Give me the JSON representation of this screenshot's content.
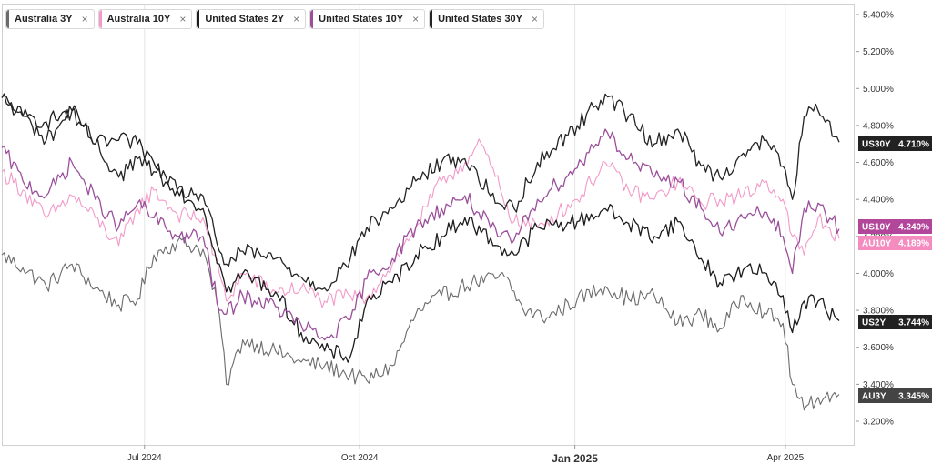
{
  "colors": {
    "au3y": "#6b6b6b",
    "au10y": "#f29ac8",
    "us2y": "#1c1c1c",
    "us10y": "#9b4f9b",
    "us30y": "#242424",
    "tag_dark": "#222222",
    "tag_au3y": "#444444",
    "tag_us10y": "#b2469a",
    "tag_au10y": "#f48cc0"
  },
  "legend": [
    {
      "label": "Australia 3Y",
      "color": "#6b6b6b",
      "close": "×"
    },
    {
      "label": "Australia 10Y",
      "color": "#f29ac8",
      "close": "×"
    },
    {
      "label": "United States 2Y",
      "color": "#1c1c1c",
      "close": "×"
    },
    {
      "label": "United States 10Y",
      "color": "#9b4f9b",
      "close": "×"
    },
    {
      "label": "United States 30Y",
      "color": "#242424",
      "close": "×"
    }
  ],
  "chart_data": {
    "type": "line",
    "title": "",
    "xlabel": "",
    "ylabel": "",
    "x_range": [
      "2024-05-01",
      "2025-04-24"
    ],
    "ylim": [
      3.1,
      5.45
    ],
    "y_ticks": [
      "5.400%",
      "5.200%",
      "5.000%",
      "4.800%",
      "4.600%",
      "4.400%",
      "4.200%",
      "4.000%",
      "3.800%",
      "3.600%",
      "3.400%",
      "3.200%"
    ],
    "y_tick_values": [
      5.4,
      5.2,
      5.0,
      4.8,
      4.6,
      4.4,
      4.2,
      4.0,
      3.8,
      3.6,
      3.4,
      3.2
    ],
    "x_ticks": [
      {
        "date": "2024-07-01",
        "label": "Jul 2024",
        "strong": false
      },
      {
        "date": "2024-10-01",
        "label": "Oct 2024",
        "strong": false
      },
      {
        "date": "2025-01-01",
        "label": "Jan 2025",
        "strong": true
      },
      {
        "date": "2025-04-01",
        "label": "Apr 2025",
        "strong": false
      }
    ],
    "grid": {
      "vertical": true,
      "horizontal": false
    },
    "series": [
      {
        "name": "Australia 3Y",
        "key": "au3y",
        "tag": "AU3Y",
        "last_label": "3.345%",
        "last_value": 3.345,
        "points": [
          [
            "2024-05-01",
            4.1
          ],
          [
            "2024-05-10",
            4.03
          ],
          [
            "2024-05-20",
            3.93
          ],
          [
            "2024-05-31",
            4.05
          ],
          [
            "2024-06-10",
            3.92
          ],
          [
            "2024-06-20",
            3.83
          ],
          [
            "2024-06-28",
            3.86
          ],
          [
            "2024-07-05",
            4.1
          ],
          [
            "2024-07-15",
            4.17
          ],
          [
            "2024-07-26",
            4.13
          ],
          [
            "2024-08-02",
            3.78
          ],
          [
            "2024-08-05",
            3.4
          ],
          [
            "2024-08-12",
            3.64
          ],
          [
            "2024-08-26",
            3.58
          ],
          [
            "2024-09-06",
            3.52
          ],
          [
            "2024-09-16",
            3.5
          ],
          [
            "2024-09-27",
            3.45
          ],
          [
            "2024-10-04",
            3.42
          ],
          [
            "2024-10-15",
            3.5
          ],
          [
            "2024-10-25",
            3.78
          ],
          [
            "2024-11-05",
            3.88
          ],
          [
            "2024-11-18",
            3.95
          ],
          [
            "2024-12-02",
            3.98
          ],
          [
            "2024-12-10",
            3.8
          ],
          [
            "2024-12-20",
            3.76
          ],
          [
            "2025-01-02",
            3.86
          ],
          [
            "2025-01-14",
            3.93
          ],
          [
            "2025-01-24",
            3.86
          ],
          [
            "2025-02-04",
            3.88
          ],
          [
            "2025-02-14",
            3.73
          ],
          [
            "2025-02-24",
            3.78
          ],
          [
            "2025-03-04",
            3.7
          ],
          [
            "2025-03-14",
            3.88
          ],
          [
            "2025-03-24",
            3.78
          ],
          [
            "2025-03-31",
            3.73
          ],
          [
            "2025-04-04",
            3.4
          ],
          [
            "2025-04-09",
            3.26
          ],
          [
            "2025-04-15",
            3.33
          ],
          [
            "2025-04-24",
            3.345
          ]
        ]
      },
      {
        "name": "Australia 10Y",
        "key": "au10y",
        "tag": "AU10Y",
        "last_label": "4.189%",
        "last_value": 4.189,
        "points": [
          [
            "2024-05-01",
            4.55
          ],
          [
            "2024-05-10",
            4.45
          ],
          [
            "2024-05-20",
            4.3
          ],
          [
            "2024-05-31",
            4.42
          ],
          [
            "2024-06-10",
            4.3
          ],
          [
            "2024-06-20",
            4.15
          ],
          [
            "2024-06-28",
            4.35
          ],
          [
            "2024-07-05",
            4.45
          ],
          [
            "2024-07-15",
            4.32
          ],
          [
            "2024-07-26",
            4.3
          ],
          [
            "2024-08-02",
            4.0
          ],
          [
            "2024-08-05",
            3.85
          ],
          [
            "2024-08-12",
            4.0
          ],
          [
            "2024-08-26",
            3.9
          ],
          [
            "2024-09-06",
            3.92
          ],
          [
            "2024-09-16",
            3.85
          ],
          [
            "2024-09-27",
            3.88
          ],
          [
            "2024-10-04",
            3.87
          ],
          [
            "2024-10-15",
            4.05
          ],
          [
            "2024-10-25",
            4.25
          ],
          [
            "2024-11-05",
            4.5
          ],
          [
            "2024-11-15",
            4.6
          ],
          [
            "2024-11-22",
            4.7
          ],
          [
            "2024-12-06",
            4.28
          ],
          [
            "2024-12-16",
            4.25
          ],
          [
            "2025-01-02",
            4.4
          ],
          [
            "2025-01-14",
            4.6
          ],
          [
            "2025-01-24",
            4.45
          ],
          [
            "2025-02-04",
            4.4
          ],
          [
            "2025-02-14",
            4.5
          ],
          [
            "2025-02-24",
            4.38
          ],
          [
            "2025-03-04",
            4.4
          ],
          [
            "2025-03-14",
            4.42
          ],
          [
            "2025-03-24",
            4.5
          ],
          [
            "2025-03-31",
            4.4
          ],
          [
            "2025-04-04",
            4.2
          ],
          [
            "2025-04-09",
            4.1
          ],
          [
            "2025-04-15",
            4.3
          ],
          [
            "2025-04-24",
            4.189
          ]
        ]
      },
      {
        "name": "United States 2Y",
        "key": "us2y",
        "tag": "US2Y",
        "last_label": "3.744%",
        "last_value": 3.744,
        "points": [
          [
            "2024-05-01",
            4.95
          ],
          [
            "2024-05-10",
            4.85
          ],
          [
            "2024-05-20",
            4.82
          ],
          [
            "2024-05-31",
            4.88
          ],
          [
            "2024-06-10",
            4.7
          ],
          [
            "2024-06-20",
            4.72
          ],
          [
            "2024-06-28",
            4.7
          ],
          [
            "2024-07-05",
            4.6
          ],
          [
            "2024-07-15",
            4.45
          ],
          [
            "2024-07-26",
            4.35
          ],
          [
            "2024-08-02",
            4.05
          ],
          [
            "2024-08-05",
            3.9
          ],
          [
            "2024-08-12",
            4.0
          ],
          [
            "2024-08-26",
            3.9
          ],
          [
            "2024-09-06",
            3.68
          ],
          [
            "2024-09-16",
            3.58
          ],
          [
            "2024-09-27",
            3.55
          ],
          [
            "2024-10-04",
            3.85
          ],
          [
            "2024-10-15",
            3.95
          ],
          [
            "2024-10-25",
            4.1
          ],
          [
            "2024-11-05",
            4.2
          ],
          [
            "2024-11-15",
            4.3
          ],
          [
            "2024-11-29",
            4.15
          ],
          [
            "2024-12-06",
            4.1
          ],
          [
            "2024-12-16",
            4.25
          ],
          [
            "2025-01-02",
            4.28
          ],
          [
            "2025-01-14",
            4.35
          ],
          [
            "2025-01-24",
            4.27
          ],
          [
            "2025-02-04",
            4.2
          ],
          [
            "2025-02-14",
            4.28
          ],
          [
            "2025-02-24",
            4.08
          ],
          [
            "2025-03-04",
            3.95
          ],
          [
            "2025-03-14",
            4.02
          ],
          [
            "2025-03-24",
            4.0
          ],
          [
            "2025-03-31",
            3.88
          ],
          [
            "2025-04-04",
            3.68
          ],
          [
            "2025-04-09",
            3.85
          ],
          [
            "2025-04-15",
            3.85
          ],
          [
            "2025-04-24",
            3.744
          ]
        ]
      },
      {
        "name": "United States 10Y",
        "key": "us10y",
        "tag": "US10Y",
        "last_label": "4.240%",
        "last_value": 4.24,
        "points": [
          [
            "2024-05-01",
            4.68
          ],
          [
            "2024-05-10",
            4.5
          ],
          [
            "2024-05-20",
            4.42
          ],
          [
            "2024-05-31",
            4.6
          ],
          [
            "2024-06-10",
            4.4
          ],
          [
            "2024-06-20",
            4.25
          ],
          [
            "2024-06-28",
            4.38
          ],
          [
            "2024-07-05",
            4.3
          ],
          [
            "2024-07-15",
            4.2
          ],
          [
            "2024-07-26",
            4.2
          ],
          [
            "2024-08-02",
            3.8
          ],
          [
            "2024-08-05",
            3.78
          ],
          [
            "2024-08-12",
            3.88
          ],
          [
            "2024-08-26",
            3.82
          ],
          [
            "2024-09-06",
            3.72
          ],
          [
            "2024-09-16",
            3.64
          ],
          [
            "2024-09-27",
            3.75
          ],
          [
            "2024-10-04",
            3.97
          ],
          [
            "2024-10-15",
            4.08
          ],
          [
            "2024-10-25",
            4.25
          ],
          [
            "2024-11-05",
            4.35
          ],
          [
            "2024-11-15",
            4.42
          ],
          [
            "2024-11-29",
            4.2
          ],
          [
            "2024-12-06",
            4.18
          ],
          [
            "2024-12-16",
            4.4
          ],
          [
            "2025-01-02",
            4.57
          ],
          [
            "2025-01-14",
            4.78
          ],
          [
            "2025-01-24",
            4.62
          ],
          [
            "2025-02-04",
            4.52
          ],
          [
            "2025-02-14",
            4.5
          ],
          [
            "2025-02-24",
            4.35
          ],
          [
            "2025-03-04",
            4.22
          ],
          [
            "2025-03-14",
            4.3
          ],
          [
            "2025-03-24",
            4.33
          ],
          [
            "2025-03-31",
            4.2
          ],
          [
            "2025-04-04",
            4.0
          ],
          [
            "2025-04-09",
            4.35
          ],
          [
            "2025-04-15",
            4.38
          ],
          [
            "2025-04-24",
            4.24
          ]
        ]
      },
      {
        "name": "United States 30Y",
        "key": "us30y",
        "tag": "US30Y",
        "last_label": "4.710%",
        "last_value": 4.71,
        "points": [
          [
            "2024-05-01",
            4.95
          ],
          [
            "2024-05-10",
            4.85
          ],
          [
            "2024-05-20",
            4.72
          ],
          [
            "2024-05-31",
            4.88
          ],
          [
            "2024-06-10",
            4.7
          ],
          [
            "2024-06-20",
            4.52
          ],
          [
            "2024-06-28",
            4.62
          ],
          [
            "2024-07-05",
            4.55
          ],
          [
            "2024-07-15",
            4.45
          ],
          [
            "2024-07-26",
            4.42
          ],
          [
            "2024-08-02",
            4.12
          ],
          [
            "2024-08-05",
            4.05
          ],
          [
            "2024-08-12",
            4.12
          ],
          [
            "2024-08-26",
            4.08
          ],
          [
            "2024-09-06",
            3.98
          ],
          [
            "2024-09-16",
            3.92
          ],
          [
            "2024-09-27",
            4.08
          ],
          [
            "2024-10-04",
            4.25
          ],
          [
            "2024-10-15",
            4.35
          ],
          [
            "2024-10-25",
            4.5
          ],
          [
            "2024-11-05",
            4.6
          ],
          [
            "2024-11-15",
            4.62
          ],
          [
            "2024-11-29",
            4.38
          ],
          [
            "2024-12-06",
            4.35
          ],
          [
            "2024-12-16",
            4.6
          ],
          [
            "2025-01-02",
            4.8
          ],
          [
            "2025-01-14",
            4.97
          ],
          [
            "2025-01-24",
            4.85
          ],
          [
            "2025-02-04",
            4.7
          ],
          [
            "2025-02-14",
            4.78
          ],
          [
            "2025-02-24",
            4.58
          ],
          [
            "2025-03-04",
            4.52
          ],
          [
            "2025-03-14",
            4.65
          ],
          [
            "2025-03-24",
            4.72
          ],
          [
            "2025-03-31",
            4.58
          ],
          [
            "2025-04-04",
            4.4
          ],
          [
            "2025-04-09",
            4.85
          ],
          [
            "2025-04-15",
            4.88
          ],
          [
            "2025-04-24",
            4.71
          ]
        ]
      }
    ]
  }
}
